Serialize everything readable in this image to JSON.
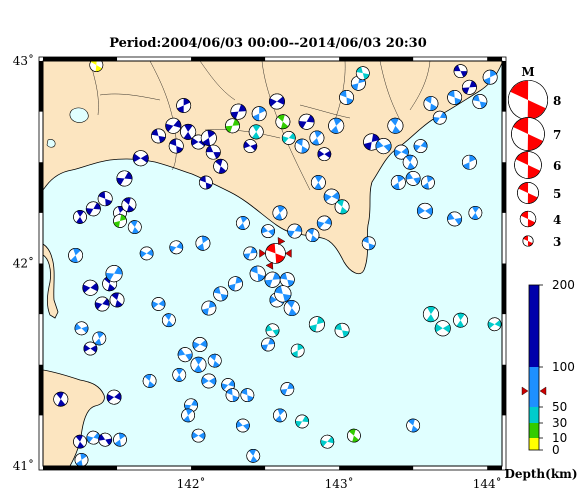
{
  "title": "Period:2004/06/03 00:00--2014/06/03 20:30",
  "map": {
    "lon_range": [
      141.0,
      144.1
    ],
    "lat_range": [
      41.0,
      43.0
    ],
    "x_ticks": [
      {
        "value": 142,
        "label": "142˚"
      },
      {
        "value": 143,
        "label": "143˚"
      },
      {
        "value": 144,
        "label": "144˚"
      }
    ],
    "y_ticks": [
      {
        "value": 43,
        "label": "43˚"
      },
      {
        "value": 42,
        "label": "42˚"
      },
      {
        "value": 41,
        "label": "41˚"
      }
    ],
    "colors": {
      "sea": "#e0ffff",
      "land": "#fce5c0",
      "coast": "#000000"
    }
  },
  "magnitude_legend": {
    "title": "M",
    "items": [
      {
        "label": "8",
        "m": 8
      },
      {
        "label": "7",
        "m": 7
      },
      {
        "label": "6",
        "m": 6
      },
      {
        "label": "5",
        "m": 5
      },
      {
        "label": "4",
        "m": 4
      },
      {
        "label": "3",
        "m": 3
      }
    ]
  },
  "depth_scale": {
    "title": "Depth(km)",
    "range": [
      0,
      200
    ],
    "ticks": [
      {
        "value": 200,
        "label": "200"
      },
      {
        "value": 100,
        "label": "100"
      },
      {
        "value": 50,
        "label": "50"
      },
      {
        "value": 30,
        "label": "30"
      },
      {
        "value": 10,
        "label": "10"
      },
      {
        "value": 0,
        "label": "0"
      }
    ],
    "bands": [
      {
        "from": 0,
        "to": 10,
        "color": "#ffff00"
      },
      {
        "from": 10,
        "to": 30,
        "color": "#33cc00"
      },
      {
        "from": 30,
        "to": 50,
        "color": "#00cccc"
      },
      {
        "from": 50,
        "to": 100,
        "color": "#1e90ff"
      },
      {
        "from": 100,
        "to": 200,
        "color": "#0000aa"
      }
    ],
    "marker_depth": 70
  },
  "featured_event": {
    "lon": 142.57,
    "lat": 42.05,
    "mag": 4.6,
    "color": "#ff0000",
    "depth": 70
  },
  "events": [
    {
      "lon": 141.36,
      "lat": 42.98,
      "mag": 3.4,
      "color": "#ffff00",
      "rot": 30
    },
    {
      "lon": 141.25,
      "lat": 42.23,
      "mag": 3.4,
      "color": "#0000aa",
      "rot": 60
    },
    {
      "lon": 141.34,
      "lat": 42.27,
      "mag": 3.6,
      "color": "#0000aa",
      "rot": 120
    },
    {
      "lon": 141.42,
      "lat": 42.32,
      "mag": 3.6,
      "color": "#0000aa",
      "rot": 200
    },
    {
      "lon": 141.52,
      "lat": 42.25,
      "mag": 3.4,
      "color": "#0000aa",
      "rot": 250
    },
    {
      "lon": 141.55,
      "lat": 42.42,
      "mag": 3.8,
      "color": "#0000aa",
      "rot": 300
    },
    {
      "lon": 141.58,
      "lat": 42.29,
      "mag": 3.6,
      "color": "#0000aa",
      "rot": 40
    },
    {
      "lon": 141.52,
      "lat": 42.21,
      "mag": 3.4,
      "color": "#33cc00",
      "rot": 100
    },
    {
      "lon": 141.66,
      "lat": 42.52,
      "mag": 3.8,
      "color": "#0000aa",
      "rot": 150
    },
    {
      "lon": 141.78,
      "lat": 42.63,
      "mag": 3.6,
      "color": "#0000aa",
      "rot": 10
    },
    {
      "lon": 141.88,
      "lat": 42.68,
      "mag": 3.8,
      "color": "#0000aa",
      "rot": 310
    },
    {
      "lon": 141.9,
      "lat": 42.58,
      "mag": 3.6,
      "color": "#0000aa",
      "rot": 200
    },
    {
      "lon": 141.95,
      "lat": 42.78,
      "mag": 3.6,
      "color": "#0000aa",
      "rot": 90
    },
    {
      "lon": 141.98,
      "lat": 42.65,
      "mag": 3.8,
      "color": "#0000aa",
      "rot": 240
    },
    {
      "lon": 142.05,
      "lat": 42.6,
      "mag": 3.6,
      "color": "#0000aa",
      "rot": 330
    },
    {
      "lon": 142.12,
      "lat": 42.62,
      "mag": 3.8,
      "color": "#0000aa",
      "rot": 80
    },
    {
      "lon": 142.15,
      "lat": 42.55,
      "mag": 3.6,
      "color": "#0000aa",
      "rot": 180
    },
    {
      "lon": 142.2,
      "lat": 42.48,
      "mag": 3.6,
      "color": "#0000aa",
      "rot": 220
    },
    {
      "lon": 142.1,
      "lat": 42.4,
      "mag": 3.4,
      "color": "#0000aa",
      "rot": 20
    },
    {
      "lon": 142.32,
      "lat": 42.75,
      "mag": 3.8,
      "color": "#0000aa",
      "rot": 290
    },
    {
      "lon": 142.28,
      "lat": 42.68,
      "mag": 3.6,
      "color": "#33cc00",
      "rot": 110
    },
    {
      "lon": 142.44,
      "lat": 42.65,
      "mag": 3.6,
      "color": "#00cccc",
      "rot": 60
    },
    {
      "lon": 142.4,
      "lat": 42.58,
      "mag": 3.4,
      "color": "#0000aa",
      "rot": 160
    },
    {
      "lon": 142.46,
      "lat": 42.74,
      "mag": 3.6,
      "color": "#1e90ff",
      "rot": 270
    },
    {
      "lon": 142.58,
      "lat": 42.8,
      "mag": 3.8,
      "color": "#0000aa",
      "rot": 320
    },
    {
      "lon": 142.62,
      "lat": 42.7,
      "mag": 3.6,
      "color": "#33cc00",
      "rot": 40
    },
    {
      "lon": 142.66,
      "lat": 42.62,
      "mag": 3.4,
      "color": "#00cccc",
      "rot": 130
    },
    {
      "lon": 142.75,
      "lat": 42.58,
      "mag": 3.6,
      "color": "#1e90ff",
      "rot": 210
    },
    {
      "lon": 142.78,
      "lat": 42.7,
      "mag": 3.8,
      "color": "#0000aa",
      "rot": 300
    },
    {
      "lon": 142.85,
      "lat": 42.62,
      "mag": 3.6,
      "color": "#1e90ff",
      "rot": 70
    },
    {
      "lon": 142.9,
      "lat": 42.54,
      "mag": 3.4,
      "color": "#0000aa",
      "rot": 150
    },
    {
      "lon": 142.98,
      "lat": 42.68,
      "mag": 3.8,
      "color": "#1e90ff",
      "rot": 250
    },
    {
      "lon": 143.05,
      "lat": 42.82,
      "mag": 3.6,
      "color": "#1e90ff",
      "rot": 20
    },
    {
      "lon": 143.13,
      "lat": 42.89,
      "mag": 3.6,
      "color": "#1e90ff",
      "rot": 100
    },
    {
      "lon": 143.16,
      "lat": 42.94,
      "mag": 3.4,
      "color": "#00cccc",
      "rot": 190
    },
    {
      "lon": 143.22,
      "lat": 42.6,
      "mag": 4.0,
      "color": "#0000aa",
      "rot": 280
    },
    {
      "lon": 143.3,
      "lat": 42.58,
      "mag": 3.8,
      "color": "#1e90ff",
      "rot": 340
    },
    {
      "lon": 143.38,
      "lat": 42.68,
      "mag": 3.8,
      "color": "#1e90ff",
      "rot": 50
    },
    {
      "lon": 143.42,
      "lat": 42.55,
      "mag": 3.6,
      "color": "#1e90ff",
      "rot": 140
    },
    {
      "lon": 143.48,
      "lat": 42.5,
      "mag": 3.6,
      "color": "#1e90ff",
      "rot": 230
    },
    {
      "lon": 143.55,
      "lat": 42.58,
      "mag": 3.4,
      "color": "#1e90ff",
      "rot": 310
    },
    {
      "lon": 143.4,
      "lat": 42.4,
      "mag": 3.6,
      "color": "#1e90ff",
      "rot": 80
    },
    {
      "lon": 143.5,
      "lat": 42.42,
      "mag": 3.6,
      "color": "#1e90ff",
      "rot": 170
    },
    {
      "lon": 143.6,
      "lat": 42.4,
      "mag": 3.4,
      "color": "#1e90ff",
      "rot": 260
    },
    {
      "lon": 143.62,
      "lat": 42.79,
      "mag": 3.6,
      "color": "#1e90ff",
      "rot": 30
    },
    {
      "lon": 143.68,
      "lat": 42.72,
      "mag": 3.4,
      "color": "#1e90ff",
      "rot": 120
    },
    {
      "lon": 143.78,
      "lat": 42.82,
      "mag": 3.6,
      "color": "#1e90ff",
      "rot": 200
    },
    {
      "lon": 143.88,
      "lat": 42.87,
      "mag": 3.6,
      "color": "#0000aa",
      "rot": 290
    },
    {
      "lon": 143.95,
      "lat": 42.8,
      "mag": 3.6,
      "color": "#1e90ff",
      "rot": 10
    },
    {
      "lon": 144.02,
      "lat": 42.92,
      "mag": 3.6,
      "color": "#1e90ff",
      "rot": 90
    },
    {
      "lon": 143.82,
      "lat": 42.95,
      "mag": 3.4,
      "color": "#0000aa",
      "rot": 180
    },
    {
      "lon": 143.88,
      "lat": 42.5,
      "mag": 3.6,
      "color": "#1e90ff",
      "rot": 270
    },
    {
      "lon": 143.78,
      "lat": 42.22,
      "mag": 3.6,
      "color": "#1e90ff",
      "rot": 350
    },
    {
      "lon": 143.92,
      "lat": 42.25,
      "mag": 3.4,
      "color": "#1e90ff",
      "rot": 60
    },
    {
      "lon": 143.58,
      "lat": 42.26,
      "mag": 3.8,
      "color": "#1e90ff",
      "rot": 150
    },
    {
      "lon": 142.86,
      "lat": 42.4,
      "mag": 3.6,
      "color": "#1e90ff",
      "rot": 240
    },
    {
      "lon": 142.95,
      "lat": 42.33,
      "mag": 3.8,
      "color": "#1e90ff",
      "rot": 320
    },
    {
      "lon": 143.02,
      "lat": 42.28,
      "mag": 3.6,
      "color": "#00cccc",
      "rot": 40
    },
    {
      "lon": 142.9,
      "lat": 42.2,
      "mag": 3.6,
      "color": "#1e90ff",
      "rot": 130
    },
    {
      "lon": 142.82,
      "lat": 42.14,
      "mag": 3.4,
      "color": "#1e90ff",
      "rot": 220
    },
    {
      "lon": 142.7,
      "lat": 42.16,
      "mag": 3.6,
      "color": "#1e90ff",
      "rot": 300
    },
    {
      "lon": 142.6,
      "lat": 42.25,
      "mag": 3.6,
      "color": "#1e90ff",
      "rot": 70
    },
    {
      "lon": 142.52,
      "lat": 42.16,
      "mag": 3.4,
      "color": "#1e90ff",
      "rot": 160
    },
    {
      "lon": 142.35,
      "lat": 42.2,
      "mag": 3.4,
      "color": "#1e90ff",
      "rot": 250
    },
    {
      "lon": 143.2,
      "lat": 42.1,
      "mag": 3.4,
      "color": "#1e90ff",
      "rot": 20
    },
    {
      "lon": 142.4,
      "lat": 42.05,
      "mag": 3.4,
      "color": "#1e90ff",
      "rot": 110
    },
    {
      "lon": 142.45,
      "lat": 41.95,
      "mag": 3.8,
      "color": "#1e90ff",
      "rot": 200
    },
    {
      "lon": 142.55,
      "lat": 41.92,
      "mag": 3.8,
      "color": "#1e90ff",
      "rot": 290
    },
    {
      "lon": 142.65,
      "lat": 41.92,
      "mag": 3.6,
      "color": "#1e90ff",
      "rot": 10
    },
    {
      "lon": 142.3,
      "lat": 41.9,
      "mag": 3.6,
      "color": "#1e90ff",
      "rot": 100
    },
    {
      "lon": 142.2,
      "lat": 41.85,
      "mag": 3.6,
      "color": "#1e90ff",
      "rot": 190
    },
    {
      "lon": 142.12,
      "lat": 41.78,
      "mag": 3.6,
      "color": "#1e90ff",
      "rot": 280
    },
    {
      "lon": 142.58,
      "lat": 41.82,
      "mag": 3.6,
      "color": "#1e90ff",
      "rot": 330
    },
    {
      "lon": 142.68,
      "lat": 41.78,
      "mag": 3.8,
      "color": "#1e90ff",
      "rot": 50
    },
    {
      "lon": 141.78,
      "lat": 41.8,
      "mag": 3.4,
      "color": "#1e90ff",
      "rot": 140
    },
    {
      "lon": 141.85,
      "lat": 41.72,
      "mag": 3.4,
      "color": "#1e90ff",
      "rot": 230
    },
    {
      "lon": 141.32,
      "lat": 41.88,
      "mag": 3.8,
      "color": "#0000aa",
      "rot": 320
    },
    {
      "lon": 141.45,
      "lat": 41.9,
      "mag": 3.6,
      "color": "#0000aa",
      "rot": 40
    },
    {
      "lon": 141.4,
      "lat": 41.8,
      "mag": 3.6,
      "color": "#0000aa",
      "rot": 130
    },
    {
      "lon": 141.5,
      "lat": 41.82,
      "mag": 3.6,
      "color": "#0000aa",
      "rot": 220
    },
    {
      "lon": 141.48,
      "lat": 41.95,
      "mag": 4.0,
      "color": "#1e90ff",
      "rot": 300
    },
    {
      "lon": 141.22,
      "lat": 42.04,
      "mag": 3.6,
      "color": "#1e90ff",
      "rot": 70
    },
    {
      "lon": 141.26,
      "lat": 41.68,
      "mag": 3.4,
      "color": "#1e90ff",
      "rot": 160
    },
    {
      "lon": 141.38,
      "lat": 41.63,
      "mag": 3.4,
      "color": "#1e90ff",
      "rot": 250
    },
    {
      "lon": 141.32,
      "lat": 41.58,
      "mag": 3.4,
      "color": "#0000aa",
      "rot": 330
    },
    {
      "lon": 141.12,
      "lat": 41.33,
      "mag": 3.6,
      "color": "#0000aa",
      "rot": 50
    },
    {
      "lon": 141.48,
      "lat": 41.34,
      "mag": 3.6,
      "color": "#0000aa",
      "rot": 140
    },
    {
      "lon": 141.25,
      "lat": 41.12,
      "mag": 3.4,
      "color": "#0000aa",
      "rot": 230
    },
    {
      "lon": 141.34,
      "lat": 41.14,
      "mag": 3.4,
      "color": "#1e90ff",
      "rot": 310
    },
    {
      "lon": 141.26,
      "lat": 41.03,
      "mag": 3.4,
      "color": "#1e90ff",
      "rot": 80
    },
    {
      "lon": 141.42,
      "lat": 41.13,
      "mag": 3.4,
      "color": "#0000aa",
      "rot": 170
    },
    {
      "lon": 141.52,
      "lat": 41.13,
      "mag": 3.4,
      "color": "#1e90ff",
      "rot": 260
    },
    {
      "lon": 141.96,
      "lat": 41.55,
      "mag": 3.6,
      "color": "#1e90ff",
      "rot": 350
    },
    {
      "lon": 142.05,
      "lat": 41.5,
      "mag": 3.8,
      "color": "#1e90ff",
      "rot": 60
    },
    {
      "lon": 142.12,
      "lat": 41.42,
      "mag": 3.6,
      "color": "#1e90ff",
      "rot": 150
    },
    {
      "lon": 141.92,
      "lat": 41.45,
      "mag": 3.4,
      "color": "#1e90ff",
      "rot": 240
    },
    {
      "lon": 142.06,
      "lat": 41.6,
      "mag": 3.6,
      "color": "#1e90ff",
      "rot": 320
    },
    {
      "lon": 142.16,
      "lat": 41.52,
      "mag": 3.4,
      "color": "#1e90ff",
      "rot": 40
    },
    {
      "lon": 142.25,
      "lat": 41.4,
      "mag": 3.4,
      "color": "#1e90ff",
      "rot": 130
    },
    {
      "lon": 141.72,
      "lat": 41.42,
      "mag": 3.4,
      "color": "#1e90ff",
      "rot": 220
    },
    {
      "lon": 142.0,
      "lat": 41.3,
      "mag": 3.4,
      "color": "#1e90ff",
      "rot": 300
    },
    {
      "lon": 142.28,
      "lat": 41.35,
      "mag": 3.4,
      "color": "#1e90ff",
      "rot": 20
    },
    {
      "lon": 142.52,
      "lat": 41.6,
      "mag": 3.4,
      "color": "#1e90ff",
      "rot": 110
    },
    {
      "lon": 142.38,
      "lat": 41.35,
      "mag": 3.4,
      "color": "#1e90ff",
      "rot": 200
    },
    {
      "lon": 142.65,
      "lat": 41.38,
      "mag": 3.4,
      "color": "#1e90ff",
      "rot": 290
    },
    {
      "lon": 142.62,
      "lat": 41.85,
      "mag": 4.0,
      "color": "#1e90ff",
      "rot": 10
    },
    {
      "lon": 142.85,
      "lat": 41.7,
      "mag": 3.8,
      "color": "#00cccc",
      "rot": 100
    },
    {
      "lon": 143.02,
      "lat": 41.67,
      "mag": 3.6,
      "color": "#00cccc",
      "rot": 190
    },
    {
      "lon": 142.72,
      "lat": 41.57,
      "mag": 3.4,
      "color": "#00cccc",
      "rot": 270
    },
    {
      "lon": 142.55,
      "lat": 41.67,
      "mag": 3.4,
      "color": "#00cccc",
      "rot": 350
    },
    {
      "lon": 143.62,
      "lat": 41.75,
      "mag": 3.8,
      "color": "#00cccc",
      "rot": 60
    },
    {
      "lon": 143.7,
      "lat": 41.68,
      "mag": 3.8,
      "color": "#00cccc",
      "rot": 150
    },
    {
      "lon": 143.82,
      "lat": 41.72,
      "mag": 3.6,
      "color": "#00cccc",
      "rot": 240
    },
    {
      "lon": 144.05,
      "lat": 41.7,
      "mag": 3.4,
      "color": "#00cccc",
      "rot": 320
    },
    {
      "lon": 143.5,
      "lat": 41.2,
      "mag": 3.4,
      "color": "#1e90ff",
      "rot": 40
    },
    {
      "lon": 142.92,
      "lat": 41.12,
      "mag": 3.4,
      "color": "#00cccc",
      "rot": 130
    },
    {
      "lon": 143.1,
      "lat": 41.15,
      "mag": 3.4,
      "color": "#33cc00",
      "rot": 220
    },
    {
      "lon": 142.75,
      "lat": 41.22,
      "mag": 3.4,
      "color": "#00cccc",
      "rot": 300
    },
    {
      "lon": 142.6,
      "lat": 41.25,
      "mag": 3.4,
      "color": "#1e90ff",
      "rot": 70
    },
    {
      "lon": 142.35,
      "lat": 41.2,
      "mag": 3.4,
      "color": "#1e90ff",
      "rot": 160
    },
    {
      "lon": 141.98,
      "lat": 41.25,
      "mag": 3.4,
      "color": "#1e90ff",
      "rot": 250
    },
    {
      "lon": 142.05,
      "lat": 41.15,
      "mag": 3.4,
      "color": "#1e90ff",
      "rot": 330
    },
    {
      "lon": 142.42,
      "lat": 41.05,
      "mag": 3.4,
      "color": "#1e90ff",
      "rot": 50
    },
    {
      "lon": 141.7,
      "lat": 42.05,
      "mag": 3.4,
      "color": "#1e90ff",
      "rot": 140
    },
    {
      "lon": 141.62,
      "lat": 42.18,
      "mag": 3.4,
      "color": "#1e90ff",
      "rot": 230
    },
    {
      "lon": 141.9,
      "lat": 42.08,
      "mag": 3.4,
      "color": "#1e90ff",
      "rot": 310
    },
    {
      "lon": 142.08,
      "lat": 42.1,
      "mag": 3.6,
      "color": "#1e90ff",
      "rot": 80
    }
  ]
}
